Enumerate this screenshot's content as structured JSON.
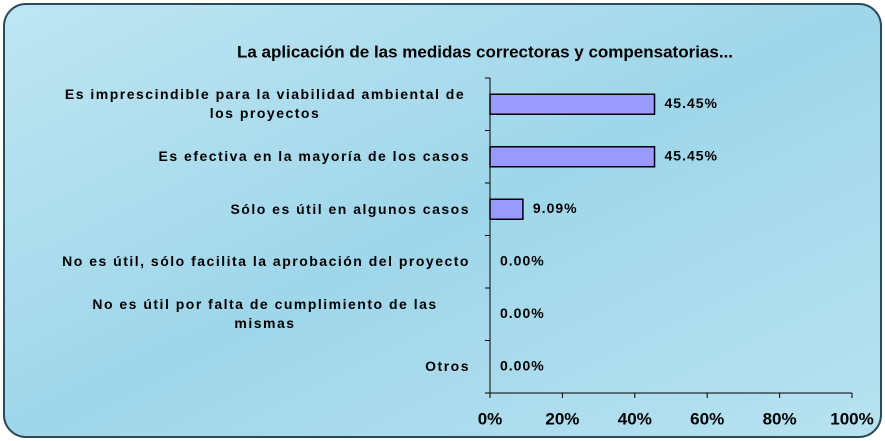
{
  "chart_data": {
    "type": "bar",
    "orientation": "horizontal",
    "title": "La aplicación de las medidas correctoras y compensatorias...",
    "categories": [
      "Es imprescindible para la viabilidad ambiental de los proyectos",
      "Es efectiva en la mayoría de los casos",
      "Sólo es útil en algunos casos",
      "No es útil, sólo facilita la aprobación del proyecto",
      "No es útil por falta de cumplimiento de las mismas",
      "Otros"
    ],
    "values": [
      45.45,
      45.45,
      9.09,
      0,
      0,
      0
    ],
    "value_labels": [
      "45.45%",
      "45.45%",
      "9.09%",
      "0.00%",
      "0.00%",
      "0.00%"
    ],
    "color": "#9999ff",
    "xlim": [
      0,
      100
    ],
    "xticks": [
      {
        "value": 0,
        "label": "0%"
      },
      {
        "value": 20,
        "label": "20%"
      },
      {
        "value": 40,
        "label": "40%"
      },
      {
        "value": 60,
        "label": "60%"
      },
      {
        "value": 80,
        "label": "80%"
      },
      {
        "value": 100,
        "label": "100%"
      }
    ],
    "grid": false
  }
}
